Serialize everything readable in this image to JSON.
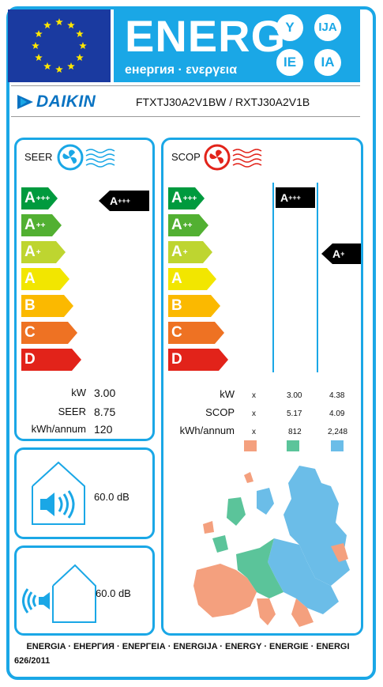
{
  "header": {
    "energ": "ENERG",
    "subtitle": "енергия · ενεργεια",
    "bubbles": [
      "Y",
      "IJA",
      "IE",
      "IA"
    ]
  },
  "brand": "DAIKIN",
  "model": "FTXTJ30A2V1BW / RXTJ30A2V1B",
  "classes": [
    {
      "letter": "A",
      "sup": "+++",
      "color": "#009a3e"
    },
    {
      "letter": "A",
      "sup": "++",
      "color": "#52b032"
    },
    {
      "letter": "A",
      "sup": "+",
      "color": "#bed530"
    },
    {
      "letter": "A",
      "sup": "",
      "color": "#f2e600"
    },
    {
      "letter": "B",
      "sup": "",
      "color": "#fbb900"
    },
    {
      "letter": "C",
      "sup": "",
      "color": "#ee7223"
    },
    {
      "letter": "D",
      "sup": "",
      "color": "#e2231a"
    }
  ],
  "seer": {
    "title": "SEER",
    "rating_letter": "A",
    "rating_sup": "+++",
    "rows": [
      {
        "label": "kW",
        "value": "3.00"
      },
      {
        "label": "SEER",
        "value": "8.75"
      },
      {
        "label": "kWh/annum",
        "value": "120"
      }
    ]
  },
  "scop": {
    "title": "SCOP",
    "marker_average_letter": "A",
    "marker_average_sup": "+++",
    "marker_warm_letter": "A",
    "marker_warm_sup": "+",
    "rows": [
      {
        "label": "kW",
        "c1": "x",
        "c2": "3.00",
        "c3": "4.38"
      },
      {
        "label": "SCOP",
        "c1": "x",
        "c2": "5.17",
        "c3": "4.09"
      },
      {
        "label": "kWh/annum",
        "c1": "x",
        "c2": "812",
        "c3": "2,248"
      }
    ],
    "swatch_colors": [
      "#f4a07e",
      "#5bc49a",
      "#6bbde8"
    ]
  },
  "noise_indoor": {
    "value": "60.0",
    "unit": "dB"
  },
  "noise_outdoor": {
    "value": "60.0",
    "unit": "dB"
  },
  "footer": {
    "languages": "ENERGIA · ЕНЕРГИЯ · ΕΝΕΡΓΕΙΑ · ENERGIJA · ENERGY · ENERGIE · ENERGI",
    "regulation": "626/2011"
  },
  "colors": {
    "accent": "#1aa7e6",
    "eu_blue": "#1a3aa0",
    "eu_star": "#ffe600"
  }
}
